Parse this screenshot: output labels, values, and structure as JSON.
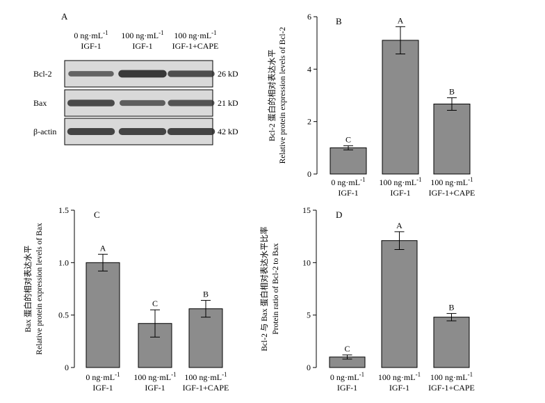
{
  "blot": {
    "panel_letter": "A",
    "lanes": [
      {
        "line1": "0 ng·mL",
        "sup": "-1",
        "line2": "IGF-1"
      },
      {
        "line1": "100 ng·mL",
        "sup": "-1",
        "line2": "IGF-1"
      },
      {
        "line1": "100 ng·mL",
        "sup": "-1",
        "line2": "IGF-1+CAPE"
      }
    ],
    "rows": [
      {
        "protein": "Bcl-2",
        "size": "26 kD",
        "intensity": [
          0.55,
          0.95,
          0.75
        ]
      },
      {
        "protein": "Bax",
        "size": "21 kD",
        "intensity": [
          0.8,
          0.6,
          0.7
        ]
      },
      {
        "protein": "β-actin",
        "size": "42 kD",
        "intensity": [
          0.85,
          0.85,
          0.85
        ]
      }
    ]
  },
  "colors": {
    "bar_fill": "#8c8c8c",
    "bar_stroke": "#000000",
    "band": "#2b2b2b",
    "blot_bg": "#d9d9d9"
  },
  "chart_data": [
    {
      "panel": "B",
      "type": "bar",
      "categories": [
        {
          "line1": "0 ng·mL",
          "sup": "-1",
          "line2": "IGF-1"
        },
        {
          "line1": "100 ng·mL",
          "sup": "-1",
          "line2": "IGF-1"
        },
        {
          "line1": "100 ng·mL",
          "sup": "-1",
          "line2": "IGF-1+CAPE"
        }
      ],
      "values": [
        1.0,
        5.1,
        2.67
      ],
      "errors": [
        0.08,
        0.52,
        0.24
      ],
      "letters": [
        "C",
        "A",
        "B"
      ],
      "ylabel_cn": "Bcl-2 蛋白的相对表达水平",
      "ylabel_en": "Relative protein expression levels of Bcl-2",
      "ylim": [
        0,
        6
      ],
      "ticks": [
        "0",
        "2",
        "4",
        "6"
      ]
    },
    {
      "panel": "C",
      "type": "bar",
      "categories": [
        {
          "line1": "0 ng·mL",
          "sup": "-1",
          "line2": "IGF-1"
        },
        {
          "line1": "100 ng·mL",
          "sup": "-1",
          "line2": "IGF-1"
        },
        {
          "line1": "100 ng·mL",
          "sup": "-1",
          "line2": "IGF-1+CAPE"
        }
      ],
      "values": [
        1.0,
        0.42,
        0.56
      ],
      "errors": [
        0.08,
        0.13,
        0.08
      ],
      "letters": [
        "A",
        "C",
        "B"
      ],
      "ylabel_cn": "Bax 蛋白的相对表达水平",
      "ylabel_en": "Relative protein expression levels of Bax",
      "ylim": [
        0,
        1.5
      ],
      "ticks": [
        "0",
        "0.5",
        "1.0",
        "1.5"
      ]
    },
    {
      "panel": "D",
      "type": "bar",
      "categories": [
        {
          "line1": "0 ng·mL",
          "sup": "-1",
          "line2": "IGF-1"
        },
        {
          "line1": "100 ng·mL",
          "sup": "-1",
          "line2": "IGF-1"
        },
        {
          "line1": "100 ng·mL",
          "sup": "-1",
          "line2": "IGF-1+CAPE"
        }
      ],
      "values": [
        1.0,
        12.1,
        4.8
      ],
      "errors": [
        0.2,
        0.85,
        0.35
      ],
      "letters": [
        "C",
        "A",
        "B"
      ],
      "ylabel_cn": "Bcl-2 与 Bax 蛋白相对表达水平比率",
      "ylabel_en": "Protein ratio of Bcl-2 to Bax",
      "ylim": [
        0,
        15
      ],
      "ticks": [
        "0",
        "5",
        "10",
        "15"
      ]
    }
  ]
}
